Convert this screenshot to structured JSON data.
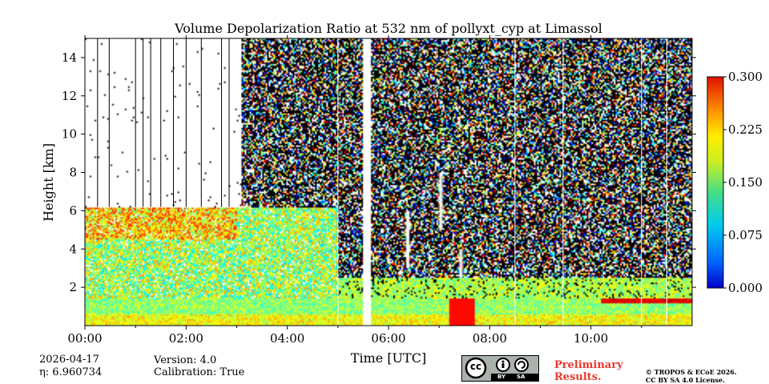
{
  "chart_data": {
    "type": "heatmap",
    "title": "Volume Depolarization Ratio at 532 nm of pollyxt_cyp at Limassol",
    "xlabel": "Time [UTC]",
    "ylabel": "Height [km]",
    "xlim": [
      0,
      12
    ],
    "ylim": [
      0,
      15
    ],
    "x_ticks": [
      0,
      2,
      4,
      6,
      8,
      10
    ],
    "x_tick_labels": [
      "00:00",
      "02:00",
      "04:00",
      "06:00",
      "08:00",
      "10:00"
    ],
    "y_ticks": [
      2,
      4,
      6,
      8,
      10,
      12,
      14
    ],
    "y_tick_labels": [
      "2",
      "4",
      "6",
      "8",
      "10",
      "12",
      "14"
    ],
    "colorbar": {
      "range": [
        0.0,
        0.3
      ],
      "ticks": [
        0.0,
        0.075,
        0.15,
        0.225,
        0.3
      ],
      "tick_labels": [
        "0.000",
        "0.075",
        "0.150",
        "0.225",
        "0.300"
      ],
      "colormap": "jet"
    },
    "features": {
      "boundary_layer_top_km": 1.4,
      "aerosol_layer_top_km": 6.2,
      "aerosol_layer_end_hour": 5.0,
      "noise_onset_hour": 3.1,
      "data_gap_hours": [
        5.5,
        5.65
      ],
      "elevated_depol_layer": {
        "start_hour": 10.2,
        "end_hour": 12.0,
        "height_km": 1.5,
        "value": 0.27
      }
    }
  },
  "meta": {
    "date": "2026-04-17",
    "eta": "η: 6.960734",
    "version": "Version: 4.0",
    "calibration": "Calibration: True"
  },
  "license": {
    "badge_cc": "cc",
    "badge_by": "BY",
    "badge_sa": "SA",
    "prelim_line1": "Preliminary",
    "prelim_line2": "Results.",
    "copyright_line1": "© TROPOS & ECoE 2026.",
    "copyright_line2": "CC BY SA 4.0 License."
  }
}
